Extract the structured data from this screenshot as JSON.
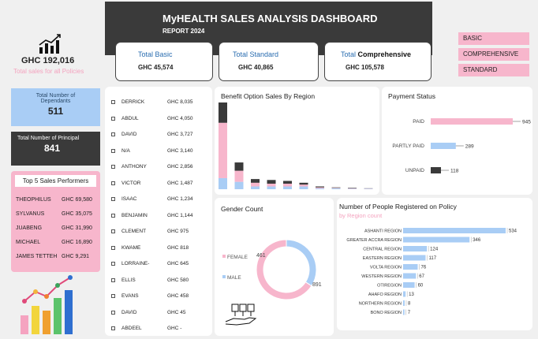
{
  "header": {
    "title": "MyHEALTH SALES ANALYSIS DASHBOARD",
    "subtitle": "REPORT 2024"
  },
  "kpis": [
    {
      "label_prefix": "Total Basic",
      "label_bold": "",
      "value": "GHC 45,574"
    },
    {
      "label_prefix": "Total Standard",
      "label_bold": "",
      "value": "GHC 40,865"
    },
    {
      "label_prefix": "Total ",
      "label_bold": "Comprehensive",
      "value": "GHC 105,578"
    }
  ],
  "slicers": [
    "BASIC",
    "COMPREHENSIVE",
    "STANDARD"
  ],
  "total_sales": {
    "value": "GHC 192,016",
    "label": "Total sales for all Policies"
  },
  "dependants": {
    "label": "Total Number of Dependants",
    "value": "511"
  },
  "principal": {
    "label": "Total Number of Principal",
    "value": "841"
  },
  "top_performers": {
    "title": "Top 5 Sales Performers",
    "rows": [
      {
        "name": "THEOPHILUS",
        "value": "GHC 69,580"
      },
      {
        "name": "SYLVANUS",
        "value": "GHC 35,075"
      },
      {
        "name": "JUABENG",
        "value": "GHC 31,990"
      },
      {
        "name": "MICHAEL",
        "value": "GHC 16,890"
      },
      {
        "name": "JAMES TETTEH",
        "value": "GHC 9,291"
      }
    ]
  },
  "agent_list": [
    {
      "name": "DERRICK",
      "value": "GHC 8,035"
    },
    {
      "name": "ABDUL",
      "value": "GHC 4,050"
    },
    {
      "name": "DAVID",
      "value": "GHC 3,727"
    },
    {
      "name": "N/A",
      "value": "GHC 3,140"
    },
    {
      "name": "ANTHONY",
      "value": "GHC 2,856"
    },
    {
      "name": "VICTOR",
      "value": "GHC 1,487"
    },
    {
      "name": "ISAAC",
      "value": "GHC 1,234"
    },
    {
      "name": "BENJAMIN",
      "value": "GHC 1,144"
    },
    {
      "name": "CLEMENT",
      "value": "GHC 975"
    },
    {
      "name": "KWAME",
      "value": "GHC 818"
    },
    {
      "name": "LORRAINE-",
      "value": "GHC 645"
    },
    {
      "name": "ELLIS",
      "value": "GHC 580"
    },
    {
      "name": "EVANS",
      "value": "GHC 458"
    },
    {
      "name": "DAVID",
      "value": "GHC 45"
    },
    {
      "name": "ABDEEL",
      "value": "GHC -"
    }
  ],
  "panels": {
    "benefit_title": "Benefit Option Sales By Region",
    "payment_title": "Payment Status",
    "gender_title": "Gender Count",
    "people_title": "Number of People Registered on Policy",
    "people_subtitle": "by Region count"
  },
  "colors": {
    "pink": "#f7b6cc",
    "blue": "#a9cdf5",
    "dark": "#3a3a3a",
    "accent_blue": "#2a6db0"
  },
  "chart_data": [
    {
      "type": "bar",
      "stacked": true,
      "title": "Benefit Option Sales By Region",
      "categories": [
        "",
        "",
        "",
        "",
        "",
        "",
        "",
        "",
        "",
        ""
      ],
      "series": [
        {
          "color": "#a9cdf5",
          "values": [
            12,
            8,
            3,
            3,
            3,
            3,
            1,
            1,
            0.5,
            0.5
          ]
        },
        {
          "color": "#f7b6cc",
          "values": [
            60,
            12,
            4,
            3,
            3,
            2,
            1,
            0.5,
            0.5,
            0.3
          ]
        },
        {
          "color": "#3a3a3a",
          "values": [
            22,
            9,
            4,
            4,
            3,
            2,
            1,
            0.5,
            0.5,
            0.2
          ]
        }
      ]
    },
    {
      "type": "bar",
      "orientation": "horizontal",
      "title": "Payment Status",
      "categories": [
        "PAID",
        "PARTLY PAID",
        "UNPAID"
      ],
      "values": [
        945,
        289,
        118
      ],
      "colors": [
        "#f7b6cc",
        "#a9cdf5",
        "#3a3a3a"
      ]
    },
    {
      "type": "pie",
      "donut": true,
      "title": "Gender Count",
      "labels": [
        "FEMALE",
        "MALE"
      ],
      "values": [
        891,
        461
      ],
      "colors": [
        "#f7b6cc",
        "#a9cdf5"
      ]
    },
    {
      "type": "bar",
      "orientation": "horizontal",
      "title": "Number of People Registered on Policy",
      "subtitle": "by Region count",
      "categories": [
        "ASHANTI REGION",
        "GREATER ACCRA REGION",
        "CENTRAL REGION",
        "EASTERN REGION",
        "VOLTA REGION",
        "WESTERN REGION",
        "OTIREGION",
        "AHAFO REGION",
        "NORTHERN REGION",
        "BONO REGION"
      ],
      "values": [
        534,
        346,
        124,
        117,
        76,
        67,
        60,
        13,
        8,
        7
      ]
    }
  ]
}
